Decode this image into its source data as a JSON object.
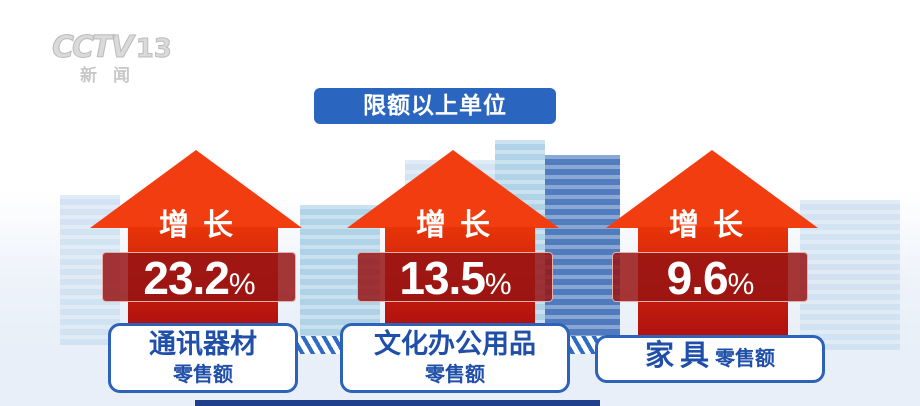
{
  "logo": {
    "channel": "CCTV",
    "number": "13",
    "name": "新闻"
  },
  "title": "限额以上单位",
  "items": [
    {
      "growth_label": "增长",
      "value": "23.2",
      "unit": "%",
      "category": "通讯器材",
      "metric": "零售额"
    },
    {
      "growth_label": "增长",
      "value": "13.5",
      "unit": "%",
      "category": "文化办公用品",
      "metric": "零售额"
    },
    {
      "growth_label": "增长",
      "value": "9.6",
      "unit": "%",
      "category": "家具",
      "metric": "零售额"
    }
  ],
  "colors": {
    "arrow": "#f23d10",
    "value_box": "#961414",
    "title_bg": "#2a66bf",
    "label_border": "#2c63b8"
  }
}
